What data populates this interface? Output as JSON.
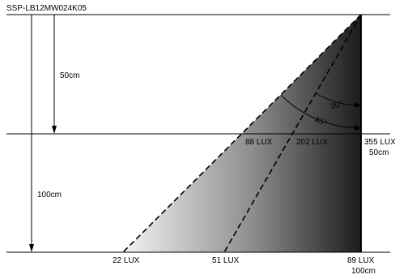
{
  "title": "SSP-LB12MW024K05",
  "distances": {
    "near": "50cm",
    "far": "100cm"
  },
  "angles": {
    "inner": "30°",
    "outer": "45°"
  },
  "lux_50cm": {
    "edge": "88 LUX",
    "mid": "202 LUX",
    "center": "355 LUX",
    "distance_label": "50cm"
  },
  "lux_100cm": {
    "edge": "22 LUX",
    "mid": "51 LUX",
    "center": "89 LUX",
    "distance_label": "100cm"
  },
  "colors": {
    "gradient_dark": "#1a1a1a",
    "gradient_light": "#f2f2f2",
    "line": "#000000"
  }
}
